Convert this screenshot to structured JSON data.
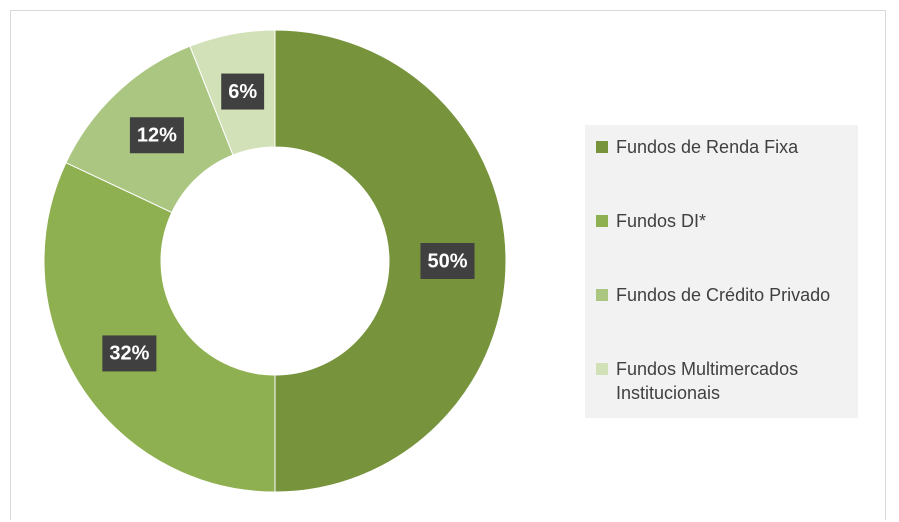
{
  "chart_data": {
    "type": "donut",
    "categories": [
      "Fundos de Renda Fixa",
      "Fundos DI*",
      "Fundos de Crédito Privado",
      "Fundos Multimercados Institucionais"
    ],
    "values": [
      50,
      32,
      12,
      6
    ],
    "value_labels": [
      "50%",
      "32%",
      "12%",
      "6%"
    ],
    "colors": [
      "#77933c",
      "#8fb050",
      "#aac681",
      "#d2e1b8"
    ],
    "legend": "right"
  }
}
